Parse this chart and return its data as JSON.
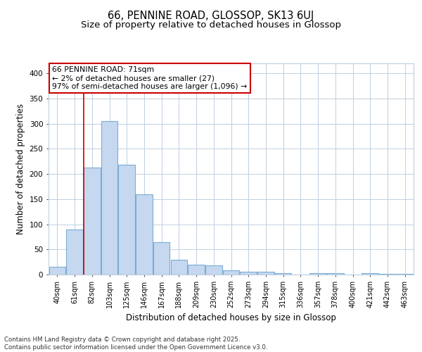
{
  "title1": "66, PENNINE ROAD, GLOSSOP, SK13 6UJ",
  "title2": "Size of property relative to detached houses in Glossop",
  "xlabel": "Distribution of detached houses by size in Glossop",
  "ylabel": "Number of detached properties",
  "categories": [
    "40sqm",
    "61sqm",
    "82sqm",
    "103sqm",
    "125sqm",
    "146sqm",
    "167sqm",
    "188sqm",
    "209sqm",
    "230sqm",
    "252sqm",
    "273sqm",
    "294sqm",
    "315sqm",
    "336sqm",
    "357sqm",
    "378sqm",
    "400sqm",
    "421sqm",
    "442sqm",
    "463sqm"
  ],
  "values": [
    15,
    90,
    213,
    305,
    218,
    160,
    65,
    30,
    20,
    18,
    9,
    5,
    5,
    3,
    0,
    3,
    3,
    0,
    3,
    2,
    1
  ],
  "bar_color": "#c5d8ef",
  "bar_edge_color": "#7aadd4",
  "red_line_x": 1.52,
  "annotation_text": "66 PENNINE ROAD: 71sqm\n← 2% of detached houses are smaller (27)\n97% of semi-detached houses are larger (1,096) →",
  "annotation_box_color": "#ffffff",
  "annotation_box_edge": "#cc0000",
  "red_line_color": "#cc0000",
  "grid_color": "#c0cfe0",
  "bg_color": "#ffffff",
  "plot_bg_color": "#ffffff",
  "ylim": [
    0,
    420
  ],
  "yticks": [
    0,
    50,
    100,
    150,
    200,
    250,
    300,
    350,
    400
  ],
  "footer_text": "Contains HM Land Registry data © Crown copyright and database right 2025.\nContains public sector information licensed under the Open Government Licence v3.0.",
  "title_fontsize": 10.5,
  "subtitle_fontsize": 9.5,
  "tick_fontsize": 7,
  "label_fontsize": 8.5,
  "annotation_fontsize": 7.8,
  "footer_fontsize": 6.2
}
